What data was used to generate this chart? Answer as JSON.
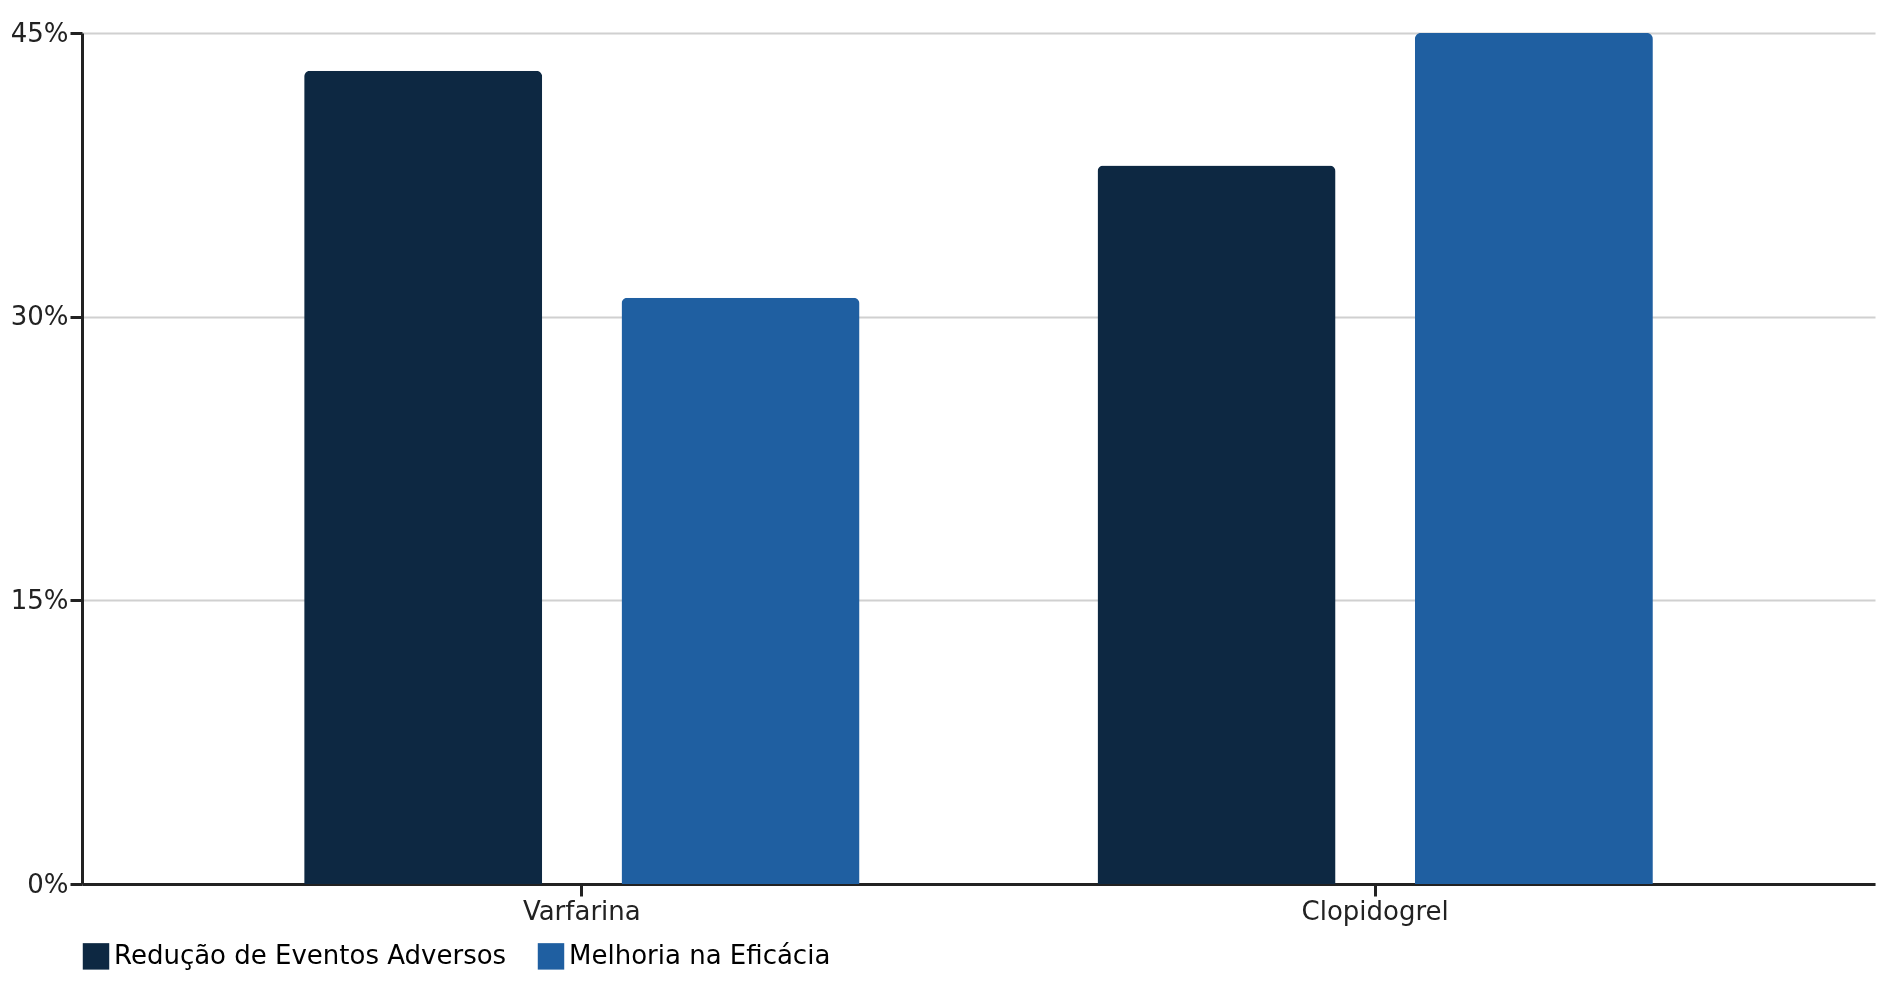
{
  "chart_data": {
    "type": "bar",
    "categories": [
      "Varfarina",
      "Clopidogrel"
    ],
    "series": [
      {
        "name": "Redução de Eventos Adversos",
        "color": "#0d2842",
        "values": [
          43,
          38
        ]
      },
      {
        "name": "Melhoria na Eficácia",
        "color": "#1f5fa1",
        "values": [
          31,
          45
        ]
      }
    ],
    "ylim": [
      0,
      45
    ],
    "yticks": [
      {
        "value": 0,
        "label": "0%"
      },
      {
        "value": 15,
        "label": "15%"
      },
      {
        "value": 30,
        "label": "30%"
      },
      {
        "value": 45,
        "label": "45%"
      }
    ],
    "grid": "y",
    "legend": "bottom"
  }
}
